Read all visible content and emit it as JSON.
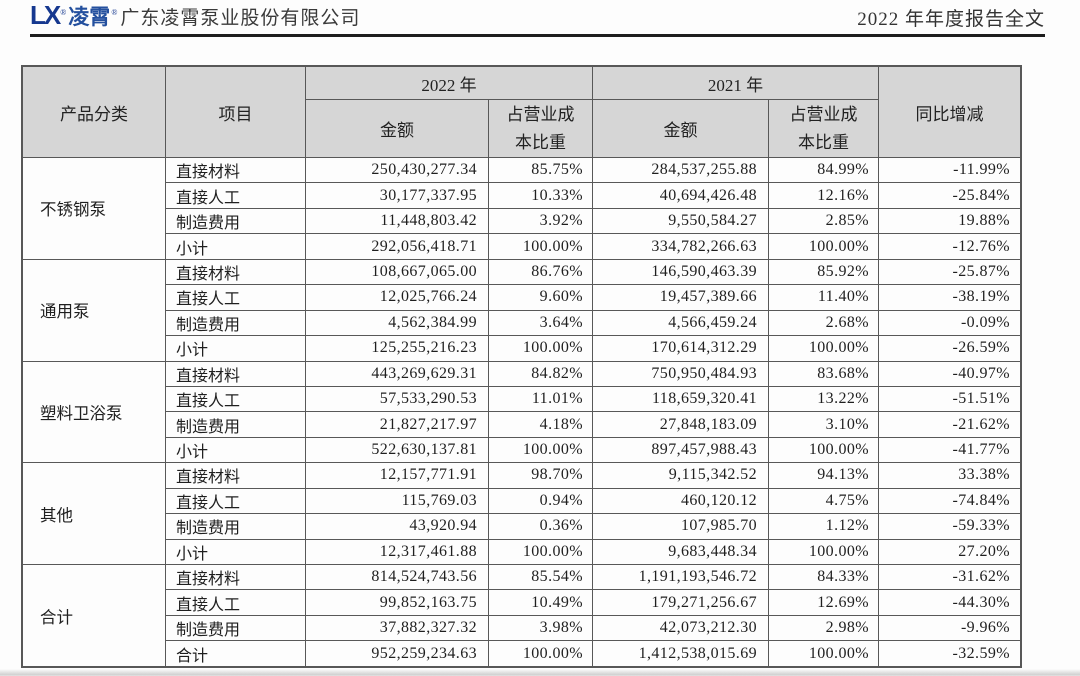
{
  "header": {
    "logo_text": "LX",
    "logo_reg": "®",
    "logo_cn": "凌霄",
    "company_name": "广东凌霄泵业股份有限公司",
    "report_title": "2022 年年度报告全文"
  },
  "colors": {
    "logo_blue": "#16388f",
    "table_header_bg": "#d6d6d6",
    "table_border": "#585858",
    "rule": "#1d1d1d"
  },
  "table": {
    "headers": {
      "product_category": "产品分类",
      "item": "项目",
      "year_2022": "2022 年",
      "year_2021": "2021 年",
      "amount": "金额",
      "cost_ratio": "占营业成本比重",
      "yoy": "同比增减"
    },
    "groups": [
      {
        "category": "不锈钢泵",
        "rows": [
          {
            "item": "直接材料",
            "amount_2022": "250,430,277.34",
            "ratio_2022": "85.75%",
            "amount_2021": "284,537,255.88",
            "ratio_2021": "84.99%",
            "yoy": "-11.99%"
          },
          {
            "item": "直接人工",
            "amount_2022": "30,177,337.95",
            "ratio_2022": "10.33%",
            "amount_2021": "40,694,426.48",
            "ratio_2021": "12.16%",
            "yoy": "-25.84%"
          },
          {
            "item": "制造费用",
            "amount_2022": "11,448,803.42",
            "ratio_2022": "3.92%",
            "amount_2021": "9,550,584.27",
            "ratio_2021": "2.85%",
            "yoy": "19.88%"
          },
          {
            "item": "小计",
            "amount_2022": "292,056,418.71",
            "ratio_2022": "100.00%",
            "amount_2021": "334,782,266.63",
            "ratio_2021": "100.00%",
            "yoy": "-12.76%"
          }
        ]
      },
      {
        "category": "通用泵",
        "rows": [
          {
            "item": "直接材料",
            "amount_2022": "108,667,065.00",
            "ratio_2022": "86.76%",
            "amount_2021": "146,590,463.39",
            "ratio_2021": "85.92%",
            "yoy": "-25.87%"
          },
          {
            "item": "直接人工",
            "amount_2022": "12,025,766.24",
            "ratio_2022": "9.60%",
            "amount_2021": "19,457,389.66",
            "ratio_2021": "11.40%",
            "yoy": "-38.19%"
          },
          {
            "item": "制造费用",
            "amount_2022": "4,562,384.99",
            "ratio_2022": "3.64%",
            "amount_2021": "4,566,459.24",
            "ratio_2021": "2.68%",
            "yoy": "-0.09%"
          },
          {
            "item": "小计",
            "amount_2022": "125,255,216.23",
            "ratio_2022": "100.00%",
            "amount_2021": "170,614,312.29",
            "ratio_2021": "100.00%",
            "yoy": "-26.59%"
          }
        ]
      },
      {
        "category": "塑料卫浴泵",
        "rows": [
          {
            "item": "直接材料",
            "amount_2022": "443,269,629.31",
            "ratio_2022": "84.82%",
            "amount_2021": "750,950,484.93",
            "ratio_2021": "83.68%",
            "yoy": "-40.97%"
          },
          {
            "item": "直接人工",
            "amount_2022": "57,533,290.53",
            "ratio_2022": "11.01%",
            "amount_2021": "118,659,320.41",
            "ratio_2021": "13.22%",
            "yoy": "-51.51%"
          },
          {
            "item": "制造费用",
            "amount_2022": "21,827,217.97",
            "ratio_2022": "4.18%",
            "amount_2021": "27,848,183.09",
            "ratio_2021": "3.10%",
            "yoy": "-21.62%"
          },
          {
            "item": "小计",
            "amount_2022": "522,630,137.81",
            "ratio_2022": "100.00%",
            "amount_2021": "897,457,988.43",
            "ratio_2021": "100.00%",
            "yoy": "-41.77%"
          }
        ]
      },
      {
        "category": "其他",
        "rows": [
          {
            "item": "直接材料",
            "amount_2022": "12,157,771.91",
            "ratio_2022": "98.70%",
            "amount_2021": "9,115,342.52",
            "ratio_2021": "94.13%",
            "yoy": "33.38%"
          },
          {
            "item": "直接人工",
            "amount_2022": "115,769.03",
            "ratio_2022": "0.94%",
            "amount_2021": "460,120.12",
            "ratio_2021": "4.75%",
            "yoy": "-74.84%"
          },
          {
            "item": "制造费用",
            "amount_2022": "43,920.94",
            "ratio_2022": "0.36%",
            "amount_2021": "107,985.70",
            "ratio_2021": "1.12%",
            "yoy": "-59.33%"
          },
          {
            "item": "小计",
            "amount_2022": "12,317,461.88",
            "ratio_2022": "100.00%",
            "amount_2021": "9,683,448.34",
            "ratio_2021": "100.00%",
            "yoy": "27.20%"
          }
        ]
      },
      {
        "category": "合计",
        "rows": [
          {
            "item": "直接材料",
            "amount_2022": "814,524,743.56",
            "ratio_2022": "85.54%",
            "amount_2021": "1,191,193,546.72",
            "ratio_2021": "84.33%",
            "yoy": "-31.62%"
          },
          {
            "item": "直接人工",
            "amount_2022": "99,852,163.75",
            "ratio_2022": "10.49%",
            "amount_2021": "179,271,256.67",
            "ratio_2021": "12.69%",
            "yoy": "-44.30%"
          },
          {
            "item": "制造费用",
            "amount_2022": "37,882,327.32",
            "ratio_2022": "3.98%",
            "amount_2021": "42,073,212.30",
            "ratio_2021": "2.98%",
            "yoy": "-9.96%"
          },
          {
            "item": "合计",
            "amount_2022": "952,259,234.63",
            "ratio_2022": "100.00%",
            "amount_2021": "1,412,538,015.69",
            "ratio_2021": "100.00%",
            "yoy": "-32.59%"
          }
        ]
      }
    ]
  }
}
